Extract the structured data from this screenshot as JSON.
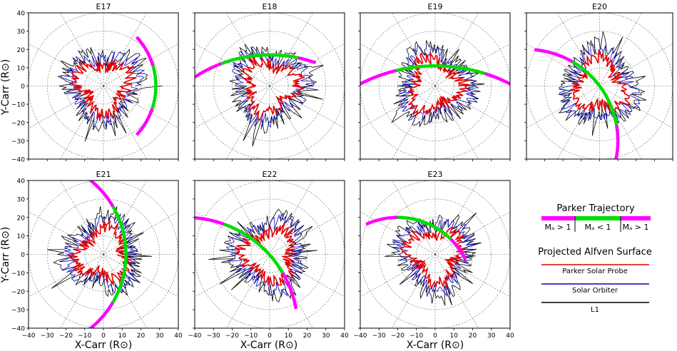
{
  "panels": [
    {
      "title": "E17",
      "curve": {
        "cx": -12,
        "cy": 0,
        "r": 40,
        "a0": -42,
        "a1": 42,
        "g0": -18,
        "g1": 16
      }
    },
    {
      "title": "E18",
      "curve": {
        "cx": 0,
        "cy": -55,
        "r": 72,
        "a0": 70,
        "a1": 140,
        "g0": 78,
        "g1": 111
      }
    },
    {
      "title": "E19",
      "curve": {
        "cx": 0,
        "cy": -75,
        "r": 86,
        "a0": 60,
        "a1": 120,
        "g0": 72,
        "g1": 104
      }
    },
    {
      "title": "E20",
      "curve": {
        "cx": -40,
        "cy": -30,
        "r": 50,
        "a0": -45,
        "a1": 85,
        "g0": 10,
        "g1": 60
      }
    },
    {
      "title": "E21",
      "curve": {
        "cx": -40,
        "cy": 0,
        "r": 52,
        "a0": -55,
        "a1": 55,
        "g0": -30,
        "g1": 30
      }
    },
    {
      "title": "E22",
      "curve": {
        "cx": -45,
        "cy": -40,
        "r": 60,
        "a0": 10,
        "a1": 88,
        "g0": 30,
        "g1": 70
      }
    },
    {
      "title": "E23",
      "curve": {
        "cx": -20,
        "cy": -20,
        "r": 40,
        "a0": 25,
        "a1": 115,
        "g0": 45,
        "g1": 90
      }
    }
  ],
  "axes": {
    "ylabel": "Y-Carr (R⊙)",
    "xlabel": "X-Carr (R⊙)",
    "yticks": [
      "40",
      "30",
      "20",
      "10",
      "0",
      "−10",
      "−20",
      "−30",
      "−40"
    ],
    "xticks": [
      "−40",
      "−30",
      "−20",
      "−10",
      "0",
      "10",
      "20",
      "30",
      "40"
    ]
  },
  "legend": {
    "title": "Parker Trajectory",
    "segments": [
      "Mₐ > 1",
      "Mₐ < 1",
      "Mₐ > 1"
    ],
    "surface_title": "Projected Alfven Surface",
    "items": [
      {
        "label": "Parker Solar Probe",
        "color": "#e00000"
      },
      {
        "label": "Solar Orbiter",
        "color": "#0000c0"
      },
      {
        "label": "L1",
        "color": "#000000"
      }
    ]
  },
  "chart_data": {
    "type": "polar-line",
    "xlim": [
      -40,
      40
    ],
    "ylim": [
      -40,
      40
    ],
    "grid_circles": [
      10,
      20,
      30,
      40
    ],
    "grid": true,
    "legend_position": "right",
    "series": [
      {
        "name": "Parker Solar Probe",
        "color": "#e00000",
        "mean_radius": 13
      },
      {
        "name": "Solar Orbiter",
        "color": "#0000c0",
        "mean_radius": 17
      },
      {
        "name": "L1",
        "color": "#000000",
        "mean_radius": 19
      }
    ],
    "trajectory_colors": {
      "super_alfvenic": "#ff00ff",
      "sub_alfvenic": "#00dd00"
    }
  }
}
